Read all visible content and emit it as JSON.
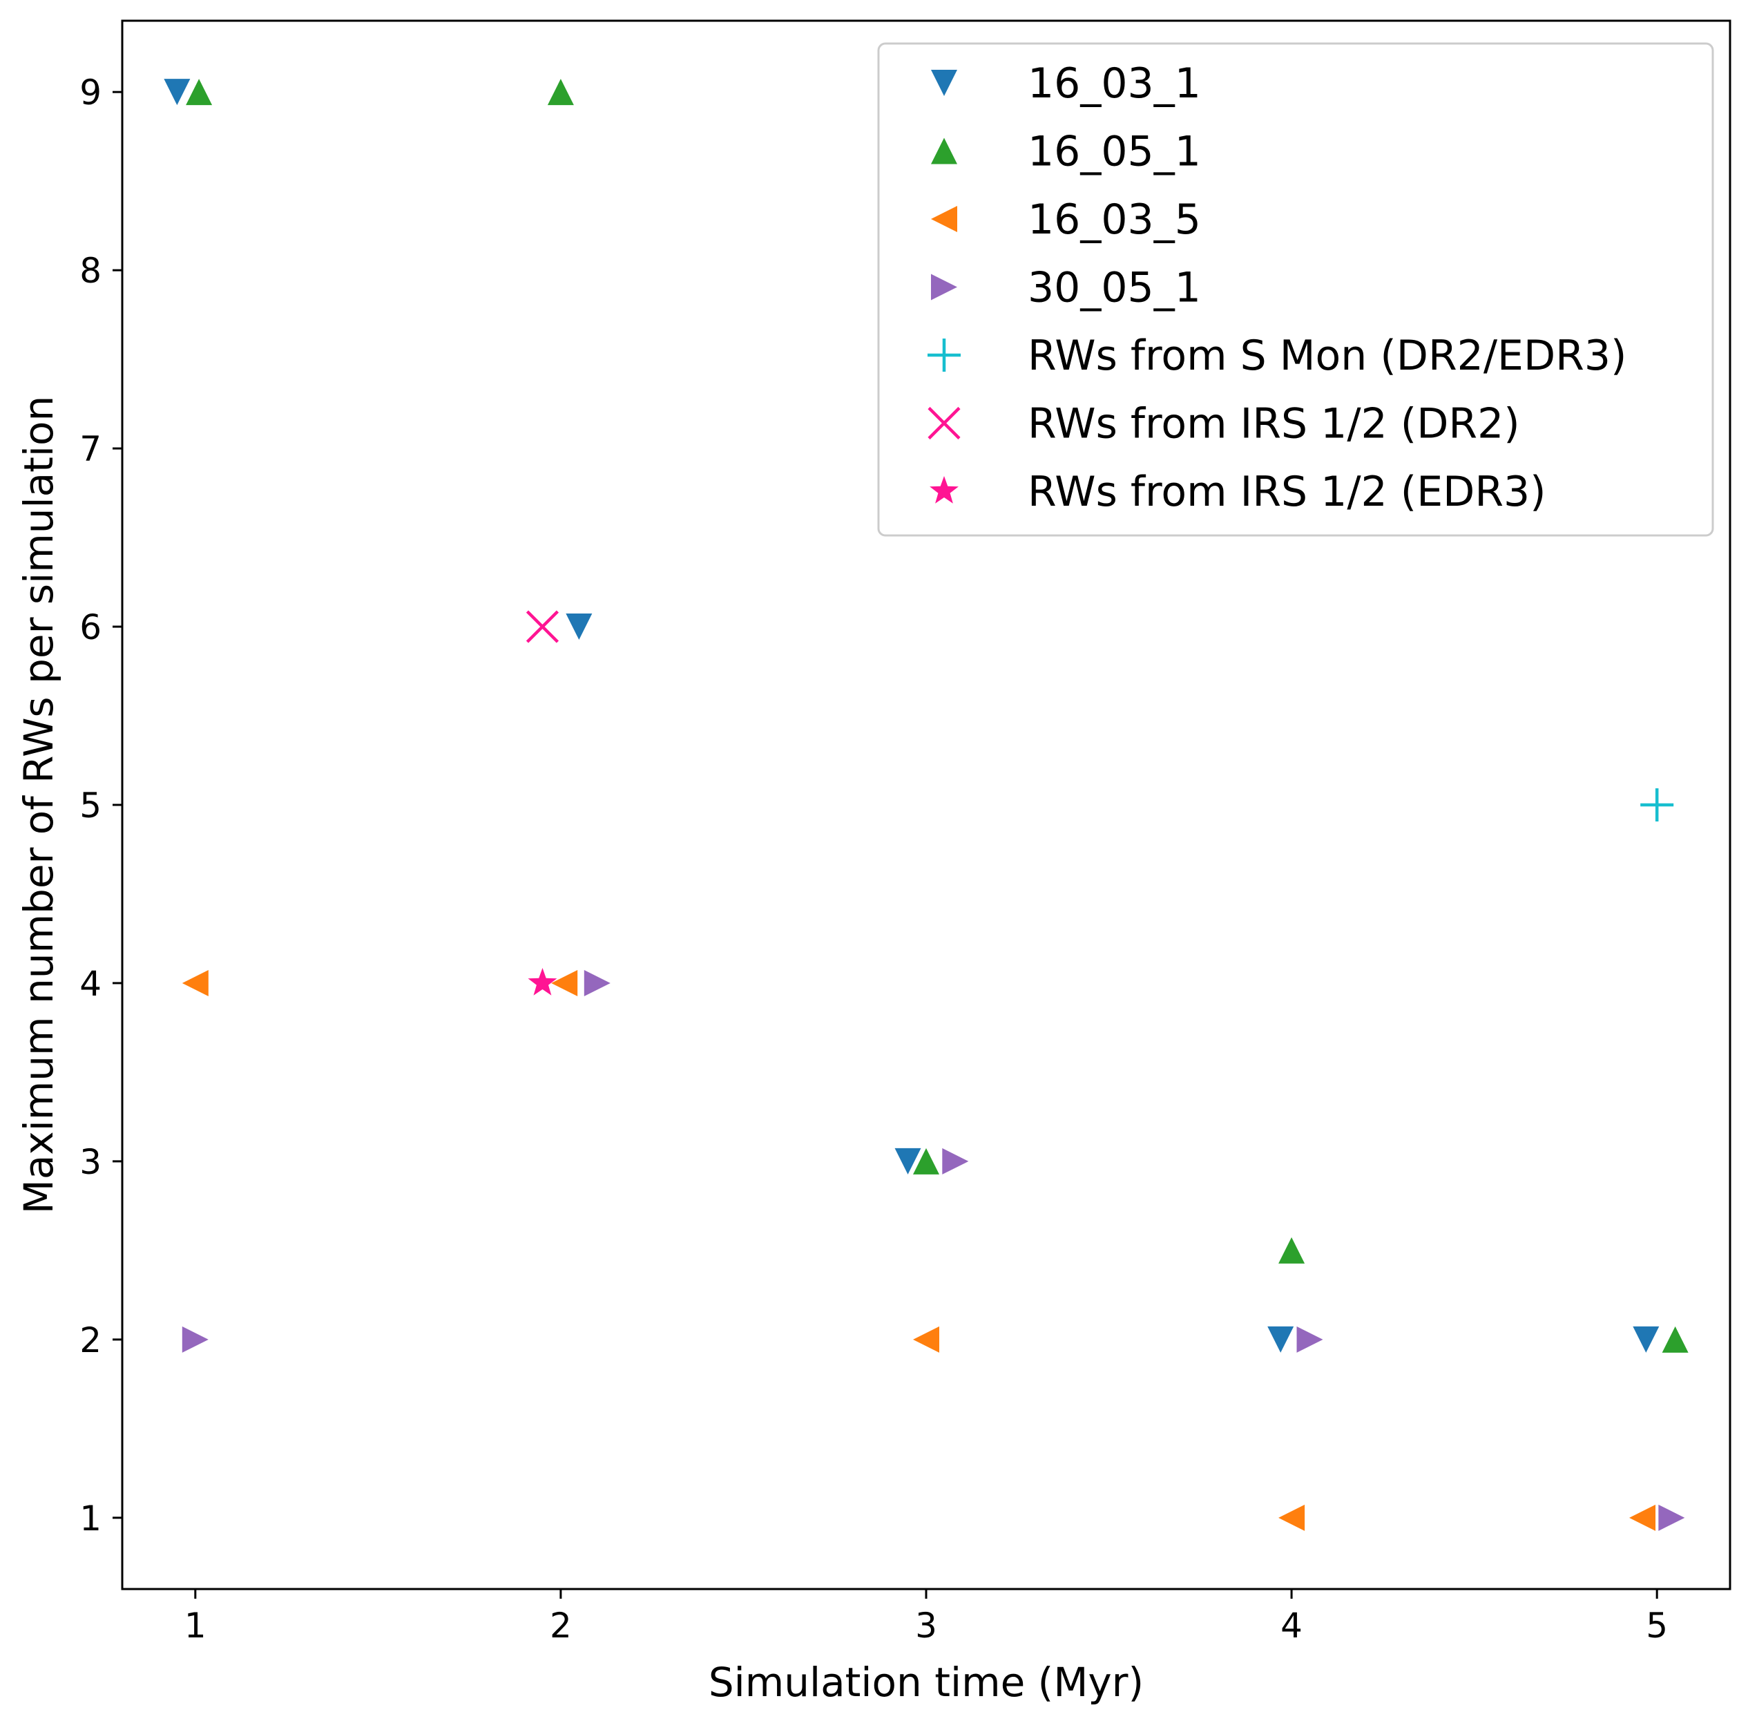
{
  "chart_data": {
    "type": "scatter",
    "xlabel": "Simulation time (Myr)",
    "ylabel": "Maximum number of RWs per simulation",
    "xlim": [
      0.8,
      5.2
    ],
    "ylim": [
      0.6,
      9.4
    ],
    "xticks": [
      1,
      2,
      3,
      4,
      5
    ],
    "yticks": [
      1,
      2,
      3,
      4,
      5,
      6,
      7,
      8,
      9
    ],
    "legend_position": "top-right",
    "series": [
      {
        "name": "16_03_1",
        "marker": "triangle-down",
        "color": "#1f77b4",
        "points": [
          [
            0.95,
            9
          ],
          [
            2.05,
            6
          ],
          [
            2.95,
            3
          ],
          [
            3.97,
            2
          ],
          [
            4.97,
            2
          ]
        ]
      },
      {
        "name": "16_05_1",
        "marker": "triangle-up",
        "color": "#2ca02c",
        "points": [
          [
            1.01,
            9
          ],
          [
            2.0,
            9
          ],
          [
            3.0,
            3
          ],
          [
            4.0,
            2.5
          ],
          [
            5.05,
            2
          ]
        ]
      },
      {
        "name": "16_03_5",
        "marker": "triangle-left",
        "color": "#ff7f0e",
        "points": [
          [
            1.0,
            4
          ],
          [
            2.01,
            4
          ],
          [
            3.0,
            2
          ],
          [
            4.0,
            1
          ],
          [
            4.96,
            1
          ]
        ]
      },
      {
        "name": "30_05_1",
        "marker": "triangle-right",
        "color": "#9467bd",
        "points": [
          [
            1.0,
            2
          ],
          [
            2.1,
            4
          ],
          [
            3.08,
            3
          ],
          [
            4.05,
            2
          ],
          [
            5.04,
            1
          ]
        ]
      },
      {
        "name": "RWs from S Mon (DR2/EDR3)",
        "marker": "plus",
        "color": "#17becf",
        "points": [
          [
            5.0,
            5
          ]
        ]
      },
      {
        "name": "RWs from IRS 1/2 (DR2)",
        "marker": "x",
        "color": "#ff1493",
        "points": [
          [
            1.95,
            6
          ]
        ]
      },
      {
        "name": "RWs from IRS 1/2 (EDR3)",
        "marker": "star",
        "color": "#ff1493",
        "points": [
          [
            1.95,
            4
          ]
        ]
      }
    ]
  }
}
